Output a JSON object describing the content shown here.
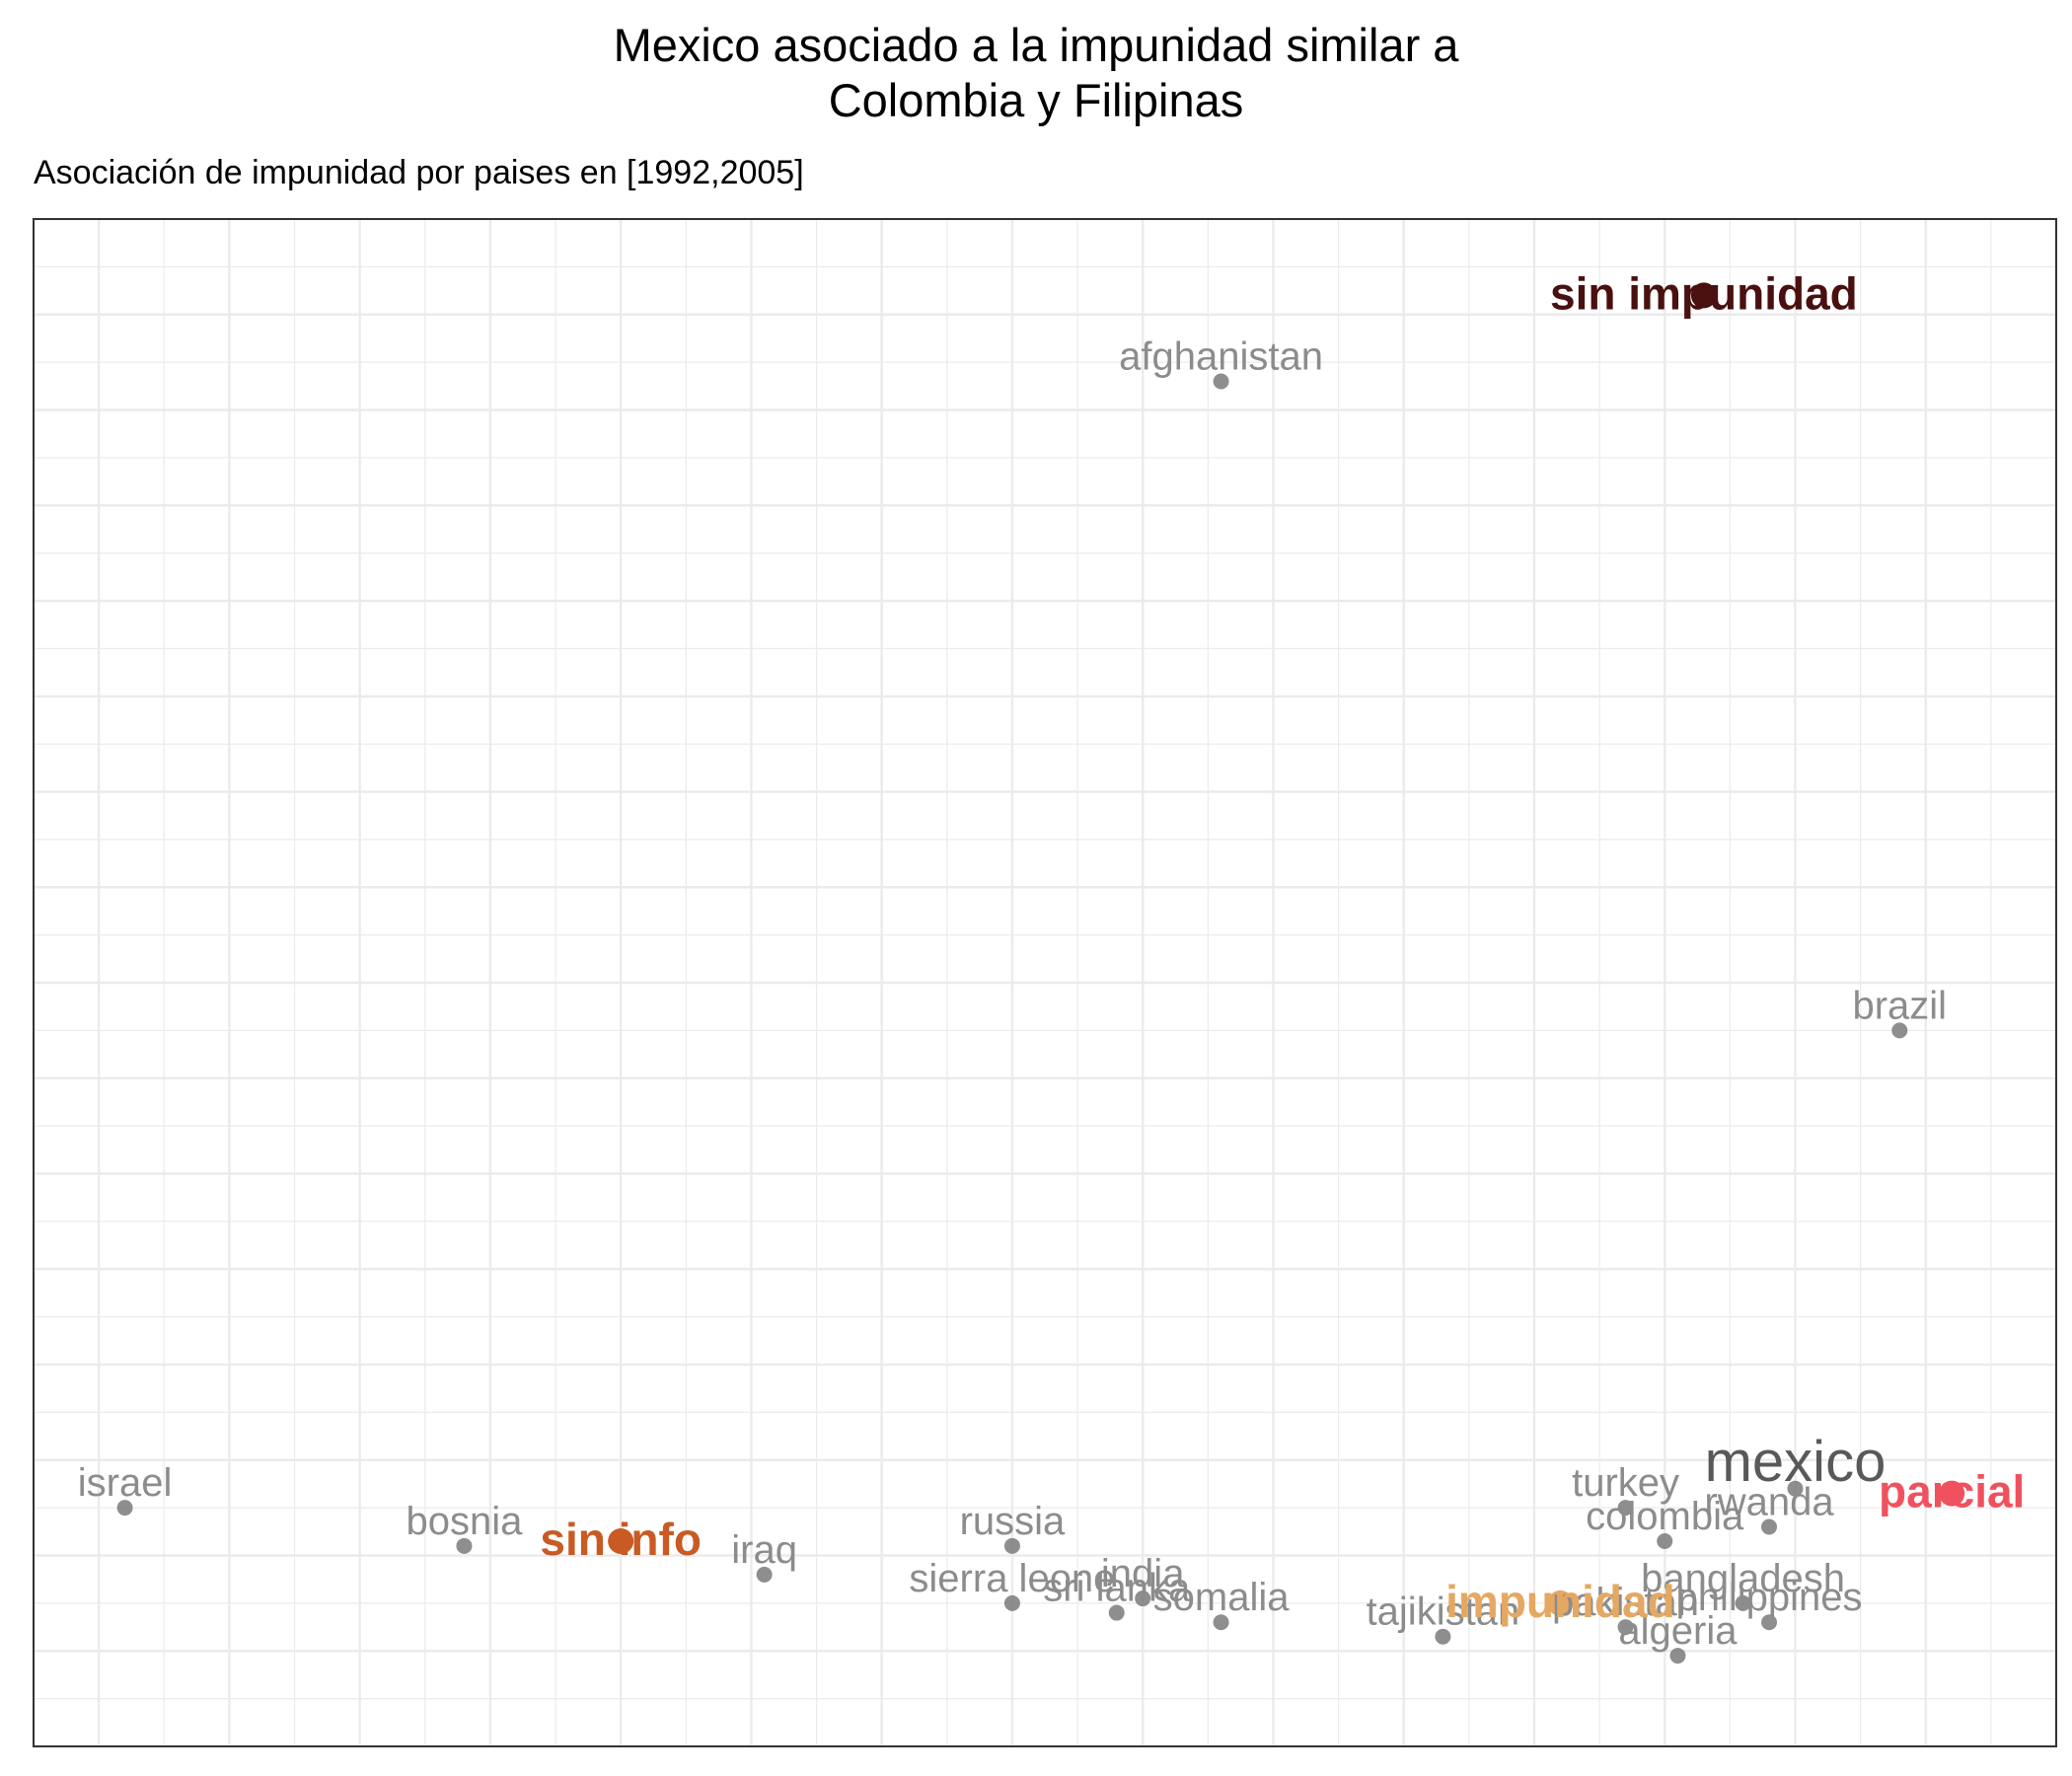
{
  "chart_data": {
    "type": "scatter",
    "title_lines": [
      "Mexico asociado a la impunidad similar a",
      "Colombia y Filipinas"
    ],
    "subtitle": "Asociación de impunidad por paises en  [1992,2005]",
    "xlabel": "",
    "ylabel": "",
    "xlim": [
      -0.65,
      0.9
    ],
    "ylim": [
      -0.4,
      1.2
    ],
    "grid": true,
    "axis_ticks_shown": false,
    "points": [
      {
        "label": "afghanistan",
        "x": 0.26,
        "y": 1.03,
        "kind": "country",
        "color": "#808080"
      },
      {
        "label": "brazil",
        "x": 0.78,
        "y": 0.35,
        "kind": "country",
        "color": "#808080"
      },
      {
        "label": "israel",
        "x": -0.58,
        "y": -0.15,
        "kind": "country",
        "color": "#808080"
      },
      {
        "label": "bosnia",
        "x": -0.32,
        "y": -0.19,
        "kind": "country",
        "color": "#808080"
      },
      {
        "label": "iraq",
        "x": -0.09,
        "y": -0.22,
        "kind": "country",
        "color": "#808080"
      },
      {
        "label": "russia",
        "x": 0.1,
        "y": -0.19,
        "kind": "country",
        "color": "#808080"
      },
      {
        "label": "sierra leone",
        "x": 0.1,
        "y": -0.25,
        "kind": "country",
        "color": "#808080"
      },
      {
        "label": "sri lanka",
        "x": 0.18,
        "y": -0.26,
        "kind": "country",
        "color": "#808080"
      },
      {
        "label": "india",
        "x": 0.2,
        "y": -0.245,
        "kind": "country",
        "color": "#808080"
      },
      {
        "label": "somalia",
        "x": 0.26,
        "y": -0.27,
        "kind": "country",
        "color": "#808080"
      },
      {
        "label": "tajikistan",
        "x": 0.43,
        "y": -0.285,
        "kind": "country",
        "color": "#808080"
      },
      {
        "label": "pakistan",
        "x": 0.57,
        "y": -0.275,
        "kind": "country",
        "color": "#808080"
      },
      {
        "label": "algeria",
        "x": 0.61,
        "y": -0.305,
        "kind": "country",
        "color": "#808080"
      },
      {
        "label": "bangladesh",
        "x": 0.66,
        "y": -0.25,
        "kind": "country",
        "color": "#808080"
      },
      {
        "label": "philippines",
        "x": 0.68,
        "y": -0.27,
        "kind": "country",
        "color": "#808080"
      },
      {
        "label": "turkey",
        "x": 0.57,
        "y": -0.15,
        "kind": "country",
        "color": "#808080"
      },
      {
        "label": "colombia",
        "x": 0.6,
        "y": -0.185,
        "kind": "country",
        "color": "#808080"
      },
      {
        "label": "rwanda",
        "x": 0.68,
        "y": -0.17,
        "kind": "country",
        "color": "#808080"
      },
      {
        "label": "mexico",
        "x": 0.7,
        "y": -0.13,
        "kind": "highlight",
        "color": "#595959"
      },
      {
        "label": "sin impunidad",
        "x": 0.63,
        "y": 1.12,
        "kind": "category",
        "color": "#4a1010"
      },
      {
        "label": "sin info",
        "x": -0.2,
        "y": -0.185,
        "kind": "category",
        "color": "#c95a24"
      },
      {
        "label": "impunidad",
        "x": 0.52,
        "y": -0.25,
        "kind": "category",
        "color": "#e5a862"
      },
      {
        "label": "parcial",
        "x": 0.82,
        "y": -0.135,
        "kind": "category",
        "color": "#f0515e"
      }
    ]
  }
}
